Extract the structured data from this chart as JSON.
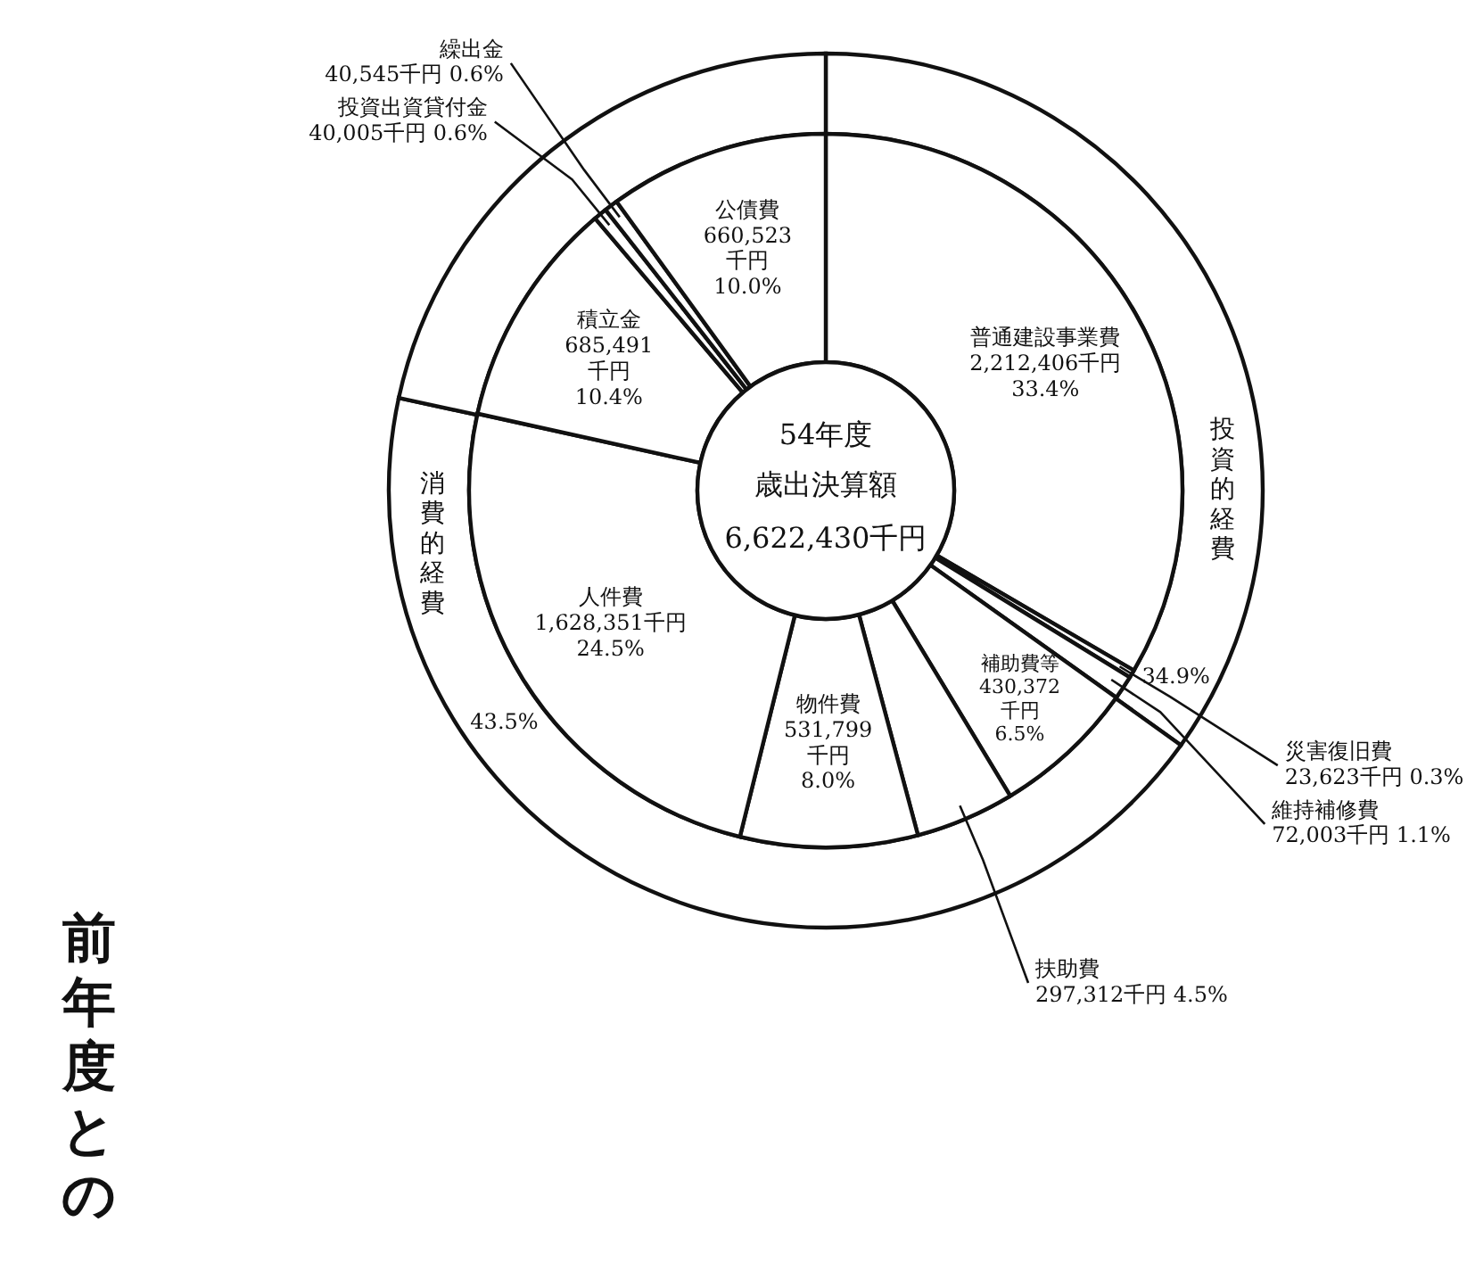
{
  "chart_data": [
    {
      "type": "donut",
      "title": "54年度",
      "subtitle": "歳出決算額",
      "annotations": [
        "6,622,430千円",
        "前年度との"
      ],
      "categories": [
        "普通建設事業費",
        "災害復旧費",
        "維持補修費",
        "補助費等",
        "扶助費",
        "物件費",
        "人件費",
        "積立金",
        "投資出資貸付金",
        "繰出金",
        "公債費"
      ],
      "values": [
        2212406,
        23623,
        72003,
        430372,
        297312,
        531799,
        1628351,
        685491,
        40005,
        40545,
        660523
      ],
      "value_labels": [
        "2,212,406千円 33.4%",
        "23,623千円 0.3%",
        "72,003千円 1.1%",
        "430,372千円 6.5%",
        "297,312千円 4.5%",
        "531,799千円 8.0%",
        "1,628,351千円 24.5%",
        "685,491千円 10.4%",
        "40,005千円 0.6%",
        "40,545千円 0.6%",
        "660,523千円 10.0%"
      ],
      "colors": [
        "#ffffff",
        "#ffffff",
        "#ffffff",
        "#ffffff",
        "#ffffff",
        "#ffffff",
        "#ffffff",
        "#ffffff",
        "#ffffff",
        "#ffffff",
        "#ffffff"
      ]
    },
    {
      "type": "donut",
      "categories": [
        "投資的経費",
        "消費的経費",
        null
      ],
      "values": [
        34.9,
        43.5,
        21.6
      ],
      "value_labels": [
        "34.9%",
        "43.5%",
        null
      ],
      "colors": [
        "#ffffff",
        "#ffffff",
        "#ffffff"
      ]
    }
  ]
}
